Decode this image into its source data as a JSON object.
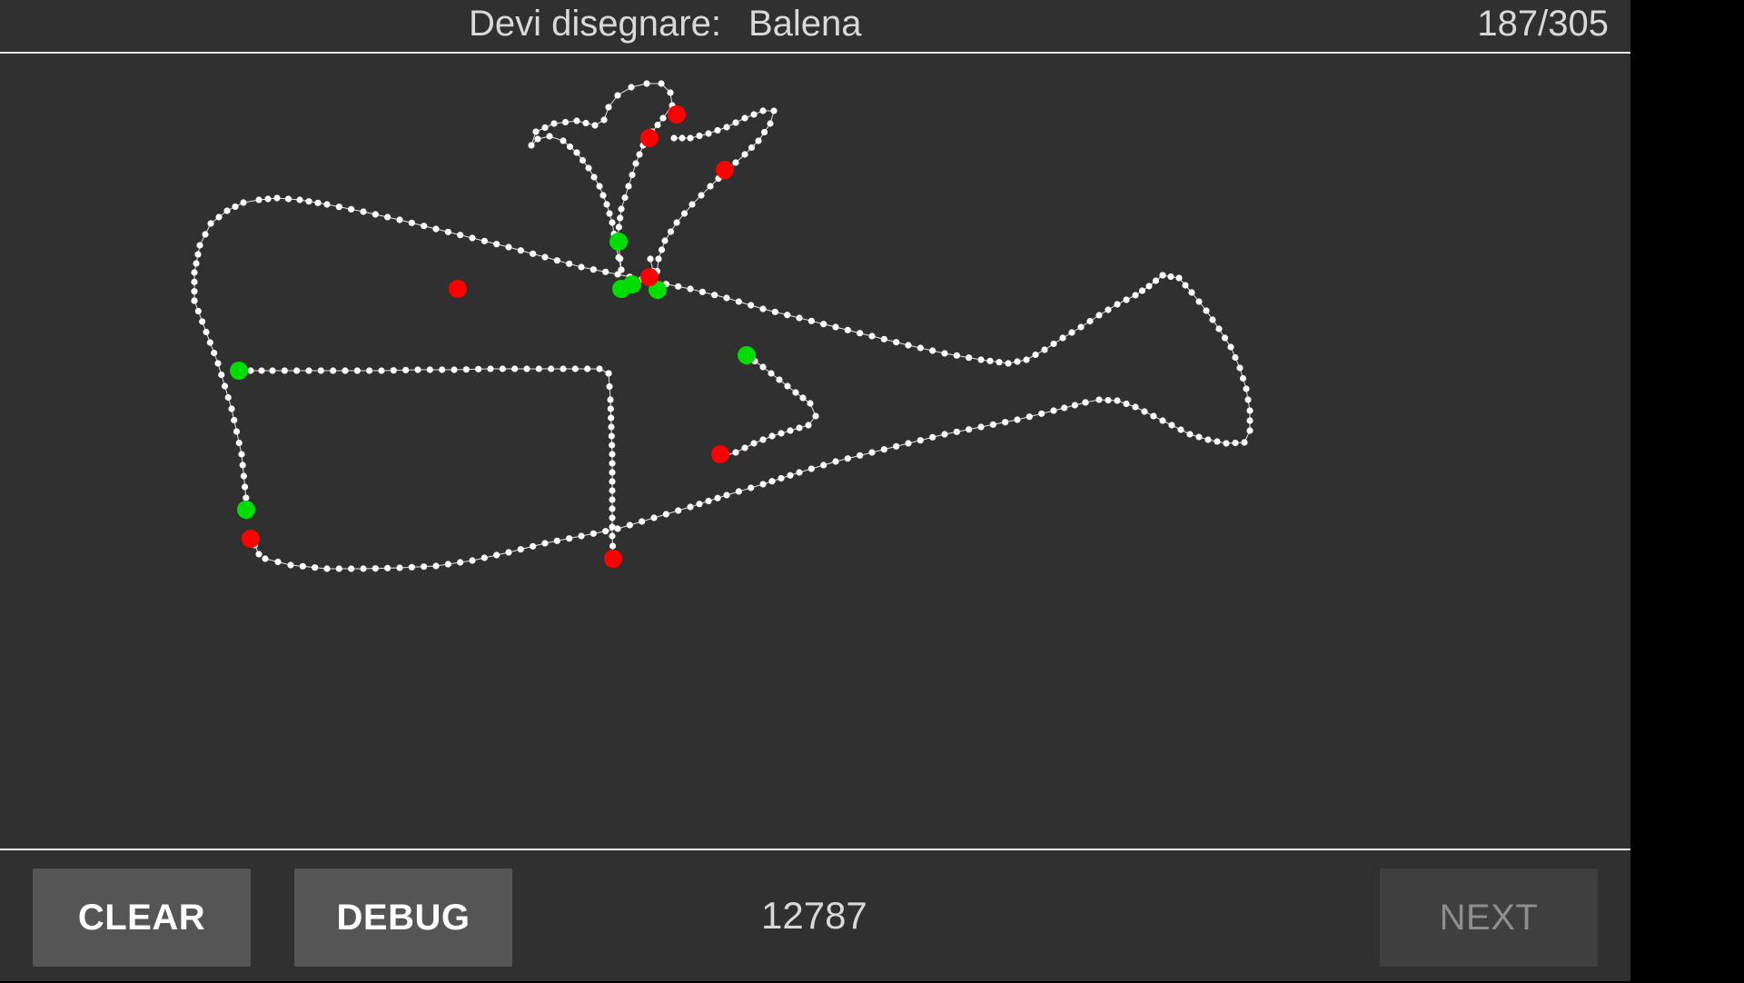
{
  "header": {
    "prompt_label": "Devi disegnare:",
    "target_word": "Balena",
    "progress": "187/305"
  },
  "footer": {
    "clear_label": "CLEAR",
    "debug_label": "DEBUG",
    "score": "12787",
    "next_label": "NEXT",
    "next_enabled": false
  },
  "colors": {
    "background": "#303030",
    "stroke": "#ffffff",
    "start_marker": "#00dd00",
    "end_marker": "#ff0000"
  }
}
